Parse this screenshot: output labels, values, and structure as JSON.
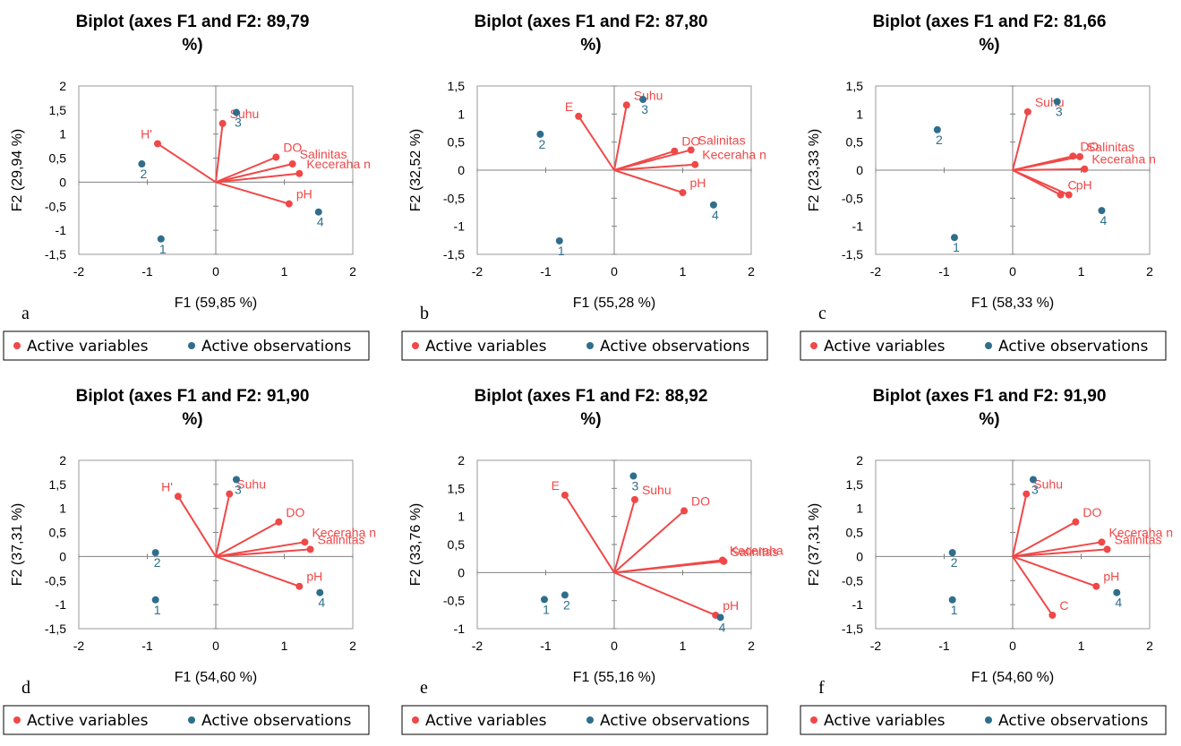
{
  "colors": {
    "variable": "#f04848",
    "observation": "#2e6e8c",
    "axis": "#808080"
  },
  "legend": {
    "variables": "Active variables",
    "observations": "Active observations"
  },
  "chart_data": [
    {
      "type": "scatter",
      "letter": "a",
      "title_line1": "Biplot (axes F1 and F2: 89,79",
      "title_line2": "%)",
      "xlabel": "F1 (59,85 %)",
      "ylabel": "F2 (29,94 %)",
      "xlim": [
        -2,
        2
      ],
      "ylim": [
        -1.5,
        2
      ],
      "xticks": [
        "-2",
        "-1",
        "0",
        "1",
        "2"
      ],
      "xtick_values": [
        -2,
        -1,
        0,
        1,
        2
      ],
      "yticks": [
        "-1,5",
        "-1",
        "-0,5",
        "0",
        "0,5",
        "1",
        "1,5",
        "2"
      ],
      "ytick_values": [
        -1.5,
        -1,
        -0.5,
        0,
        0.5,
        1,
        1.5,
        2
      ],
      "variables": [
        {
          "name": "Suhu",
          "x": 0.1,
          "y": 1.22
        },
        {
          "name": "H'",
          "x": -0.85,
          "y": 0.8
        },
        {
          "name": "DO",
          "x": 0.88,
          "y": 0.52
        },
        {
          "name": "Salinitas",
          "x": 1.12,
          "y": 0.38
        },
        {
          "name": "Keceraha n",
          "x": 1.22,
          "y": 0.18
        },
        {
          "name": "pH",
          "x": 1.07,
          "y": -0.45
        }
      ],
      "observations": [
        {
          "name": "1",
          "x": -0.8,
          "y": -1.18
        },
        {
          "name": "2",
          "x": -1.08,
          "y": 0.38
        },
        {
          "name": "3",
          "x": 0.3,
          "y": 1.45
        },
        {
          "name": "4",
          "x": 1.5,
          "y": -0.62
        }
      ]
    },
    {
      "type": "scatter",
      "letter": "b",
      "title_line1": "Biplot (axes F1 and F2: 87,80",
      "title_line2": "%)",
      "xlabel": "F1 (55,28 %)",
      "ylabel": "F2 (32,52 %)",
      "xlim": [
        -2,
        2
      ],
      "ylim": [
        -1.5,
        1.5
      ],
      "xticks": [
        "-2",
        "-1",
        "0",
        "1",
        "2"
      ],
      "xtick_values": [
        -2,
        -1,
        0,
        1,
        2
      ],
      "yticks": [
        "-1,5",
        "-1",
        "-0,5",
        "0",
        "0,5",
        "1",
        "1,5"
      ],
      "ytick_values": [
        -1.5,
        -1,
        -0.5,
        0,
        0.5,
        1,
        1.5
      ],
      "variables": [
        {
          "name": "E",
          "x": -0.52,
          "y": 0.96
        },
        {
          "name": "Suhu",
          "x": 0.18,
          "y": 1.16
        },
        {
          "name": "DO",
          "x": 0.88,
          "y": 0.34
        },
        {
          "name": "Salinitas",
          "x": 1.12,
          "y": 0.36
        },
        {
          "name": "Keceraha n",
          "x": 1.18,
          "y": 0.1
        },
        {
          "name": "pH",
          "x": 1.0,
          "y": -0.4
        }
      ],
      "observations": [
        {
          "name": "1",
          "x": -0.8,
          "y": -1.26
        },
        {
          "name": "2",
          "x": -1.08,
          "y": 0.64
        },
        {
          "name": "3",
          "x": 0.42,
          "y": 1.26
        },
        {
          "name": "4",
          "x": 1.45,
          "y": -0.62
        }
      ]
    },
    {
      "type": "scatter",
      "letter": "c",
      "title_line1": "Biplot (axes F1 and F2: 81,66",
      "title_line2": "%)",
      "xlabel": "F1 (58,33 %)",
      "ylabel": "F2 (23,33 %)",
      "xlim": [
        -2,
        2
      ],
      "ylim": [
        -1.5,
        1.5
      ],
      "xticks": [
        "-2",
        "-1",
        "0",
        "1",
        "2"
      ],
      "xtick_values": [
        -2,
        -1,
        0,
        1,
        2
      ],
      "yticks": [
        "-1,5",
        "-1",
        "-0,5",
        "0",
        "0,5",
        "1",
        "1,5"
      ],
      "ytick_values": [
        -1.5,
        -1,
        -0.5,
        0,
        0.5,
        1,
        1.5
      ],
      "variables": [
        {
          "name": "Suhu",
          "x": 0.22,
          "y": 1.04
        },
        {
          "name": "DO",
          "x": 0.88,
          "y": 0.25
        },
        {
          "name": "Salinitas",
          "x": 0.98,
          "y": 0.24
        },
        {
          "name": "Keceraha n",
          "x": 1.05,
          "y": 0.02
        },
        {
          "name": "C",
          "x": 0.7,
          "y": -0.44
        },
        {
          "name": "pH",
          "x": 0.82,
          "y": -0.44
        }
      ],
      "observations": [
        {
          "name": "1",
          "x": -0.85,
          "y": -1.2
        },
        {
          "name": "2",
          "x": -1.1,
          "y": 0.72
        },
        {
          "name": "3",
          "x": 0.65,
          "y": 1.22
        },
        {
          "name": "4",
          "x": 1.3,
          "y": -0.72
        }
      ]
    },
    {
      "type": "scatter",
      "letter": "d",
      "title_line1": "Biplot (axes F1 and F2: 91,90",
      "title_line2": "%)",
      "xlabel": "F1 (54,60 %)",
      "ylabel": "F2 (37,31 %)",
      "xlim": [
        -2,
        2
      ],
      "ylim": [
        -1.5,
        2
      ],
      "xticks": [
        "-2",
        "-1",
        "0",
        "1",
        "2"
      ],
      "xtick_values": [
        -2,
        -1,
        0,
        1,
        2
      ],
      "yticks": [
        "-1,5",
        "-1",
        "-0,5",
        "0",
        "0,5",
        "1",
        "1,5",
        "2"
      ],
      "ytick_values": [
        -1.5,
        -1,
        -0.5,
        0,
        0.5,
        1,
        1.5,
        2
      ],
      "variables": [
        {
          "name": "H'",
          "x": -0.55,
          "y": 1.25
        },
        {
          "name": "Suhu",
          "x": 0.2,
          "y": 1.3
        },
        {
          "name": "DO",
          "x": 0.92,
          "y": 0.72
        },
        {
          "name": "Keceraha n",
          "x": 1.3,
          "y": 0.3
        },
        {
          "name": "Salinitas",
          "x": 1.38,
          "y": 0.15
        },
        {
          "name": "pH",
          "x": 1.22,
          "y": -0.62
        }
      ],
      "observations": [
        {
          "name": "1",
          "x": -0.88,
          "y": -0.9
        },
        {
          "name": "2",
          "x": -0.88,
          "y": 0.08
        },
        {
          "name": "3",
          "x": 0.3,
          "y": 1.6
        },
        {
          "name": "4",
          "x": 1.52,
          "y": -0.75
        }
      ]
    },
    {
      "type": "scatter",
      "letter": "e",
      "title_line1": "Biplot (axes F1 and F2: 88,92",
      "title_line2": "%)",
      "xlabel": "F1 (55,16 %)",
      "ylabel": "F2 (33,76 %)",
      "xlim": [
        -2,
        2
      ],
      "ylim": [
        -1,
        2
      ],
      "xticks": [
        "-2",
        "-1",
        "0",
        "1",
        "2"
      ],
      "xtick_values": [
        -2,
        -1,
        0,
        1,
        2
      ],
      "yticks": [
        "-1",
        "-0,5",
        "0",
        "0,5",
        "1",
        "1,5",
        "2"
      ],
      "ytick_values": [
        -1,
        -0.5,
        0,
        0.5,
        1,
        1.5,
        2
      ],
      "variables": [
        {
          "name": "E",
          "x": -0.72,
          "y": 1.38
        },
        {
          "name": "Suhu",
          "x": 0.3,
          "y": 1.3
        },
        {
          "name": "DO",
          "x": 1.02,
          "y": 1.1
        },
        {
          "name": "Keceraha",
          "x": 1.58,
          "y": 0.22
        },
        {
          "name": "Salinitas",
          "x": 1.6,
          "y": 0.2
        },
        {
          "name": "pH",
          "x": 1.48,
          "y": -0.76
        }
      ],
      "observations": [
        {
          "name": "1",
          "x": -1.02,
          "y": -0.48
        },
        {
          "name": "2",
          "x": -0.72,
          "y": -0.4
        },
        {
          "name": "3",
          "x": 0.28,
          "y": 1.72
        },
        {
          "name": "4",
          "x": 1.55,
          "y": -0.8
        }
      ]
    },
    {
      "type": "scatter",
      "letter": "f",
      "title_line1": "Biplot (axes F1 and F2: 91,90",
      "title_line2": "%)",
      "xlabel": "F1 (54,60 %)",
      "ylabel": "F2 (37,31 %)",
      "xlim": [
        -2,
        2
      ],
      "ylim": [
        -1.5,
        2
      ],
      "xticks": [
        "-2",
        "-1",
        "0",
        "1",
        "2"
      ],
      "xtick_values": [
        -2,
        -1,
        0,
        1,
        2
      ],
      "yticks": [
        "-1,5",
        "-1",
        "-0,5",
        "0",
        "0,5",
        "1",
        "1,5",
        "2"
      ],
      "ytick_values": [
        -1.5,
        -1,
        -0.5,
        0,
        0.5,
        1,
        1.5,
        2
      ],
      "variables": [
        {
          "name": "Suhu",
          "x": 0.2,
          "y": 1.3
        },
        {
          "name": "DO",
          "x": 0.92,
          "y": 0.72
        },
        {
          "name": "Keceraha n",
          "x": 1.3,
          "y": 0.3
        },
        {
          "name": "Salinitas",
          "x": 1.38,
          "y": 0.15
        },
        {
          "name": "pH",
          "x": 1.22,
          "y": -0.62
        },
        {
          "name": "C",
          "x": 0.58,
          "y": -1.22
        }
      ],
      "observations": [
        {
          "name": "1",
          "x": -0.88,
          "y": -0.9
        },
        {
          "name": "2",
          "x": -0.88,
          "y": 0.08
        },
        {
          "name": "3",
          "x": 0.3,
          "y": 1.6
        },
        {
          "name": "4",
          "x": 1.52,
          "y": -0.75
        }
      ]
    }
  ]
}
